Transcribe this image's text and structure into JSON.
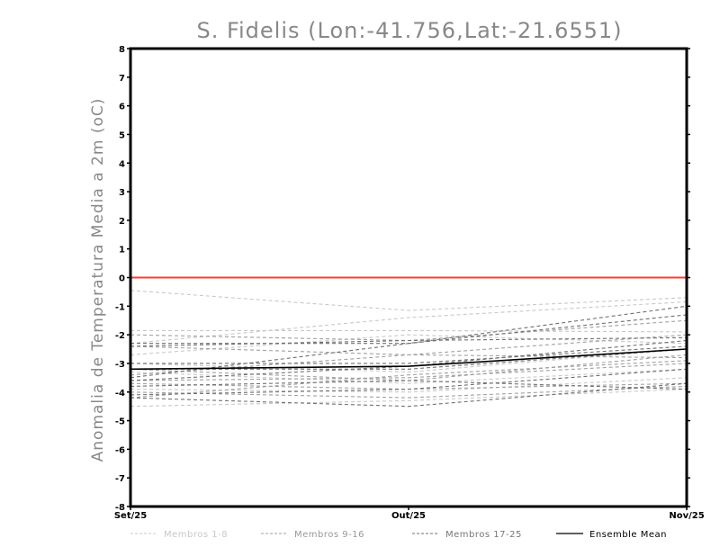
{
  "chart_data": {
    "type": "line",
    "title": "S. Fidelis (Lon:-41.756,Lat:-21.6551)",
    "ylabel": "Anomalia de Temperatura Media a 2m (oC)",
    "xlabel": "",
    "categories": [
      "Set/25",
      "Out/25",
      "Nov/25"
    ],
    "yticks": [
      "8",
      "7",
      "6",
      "5",
      "4",
      "3",
      "2",
      "1",
      "0",
      "-1",
      "-2",
      "-3",
      "-4",
      "-5",
      "-6",
      "-7",
      "-8"
    ],
    "ylim": [
      -8,
      8
    ],
    "grid": false,
    "zero_line": {
      "value": 0,
      "color": "#ff3b30"
    },
    "colors": {
      "members_1_8": "#c8c8c8",
      "members_9_16": "#a0a0a0",
      "members_17_25": "#707070",
      "ensemble_mean": "#000000"
    },
    "legend": [
      {
        "label": "Membros 1-8",
        "style": "members_1_8",
        "dashed": true
      },
      {
        "label": "Membros 9-16",
        "style": "members_9_16",
        "dashed": true
      },
      {
        "label": "Membros 17-25",
        "style": "members_17_25",
        "dashed": true
      },
      {
        "label": "Ensemble Mean",
        "style": "ensemble_mean",
        "dashed": false
      }
    ],
    "series": [
      {
        "group": "members_1_8",
        "values": [
          -0.45,
          -1.15,
          -0.7
        ]
      },
      {
        "group": "members_1_8",
        "values": [
          -1.85,
          -1.85,
          -1.9
        ]
      },
      {
        "group": "members_1_8",
        "values": [
          -2.3,
          -1.4,
          -0.85
        ]
      },
      {
        "group": "members_1_8",
        "values": [
          -2.7,
          -2.0,
          -2.3
        ]
      },
      {
        "group": "members_1_8",
        "values": [
          -3.0,
          -3.3,
          -2.5
        ]
      },
      {
        "group": "members_1_8",
        "values": [
          -3.3,
          -3.7,
          -3.2
        ]
      },
      {
        "group": "members_1_8",
        "values": [
          -3.9,
          -4.0,
          -3.5
        ]
      },
      {
        "group": "members_1_8",
        "values": [
          -4.5,
          -4.3,
          -3.9
        ]
      },
      {
        "group": "members_9_16",
        "values": [
          -2.0,
          -2.2,
          -1.5
        ]
      },
      {
        "group": "members_9_16",
        "values": [
          -2.4,
          -2.7,
          -2.8
        ]
      },
      {
        "group": "members_9_16",
        "values": [
          -3.4,
          -2.7,
          -2.0
        ]
      },
      {
        "group": "members_9_16",
        "values": [
          -3.6,
          -3.5,
          -3.0
        ]
      },
      {
        "group": "members_9_16",
        "values": [
          -3.7,
          -3.9,
          -3.7
        ]
      },
      {
        "group": "members_9_16",
        "values": [
          -4.0,
          -4.2,
          -3.8
        ]
      },
      {
        "group": "members_9_16",
        "values": [
          -4.2,
          -3.4,
          -2.9
        ]
      },
      {
        "group": "members_9_16",
        "values": [
          -3.2,
          -3.6,
          -2.7
        ]
      },
      {
        "group": "members_17_25",
        "values": [
          -2.3,
          -2.3,
          -1.3
        ]
      },
      {
        "group": "members_17_25",
        "values": [
          -3.5,
          -2.3,
          -1.0
        ]
      },
      {
        "group": "members_17_25",
        "values": [
          -2.4,
          -2.2,
          -2.1
        ]
      },
      {
        "group": "members_17_25",
        "values": [
          -3.2,
          -3.2,
          -2.5
        ]
      },
      {
        "group": "members_17_25",
        "values": [
          -3.6,
          -3.1,
          -2.2
        ]
      },
      {
        "group": "members_17_25",
        "values": [
          -4.1,
          -3.9,
          -3.2
        ]
      },
      {
        "group": "members_17_25",
        "values": [
          -4.2,
          -4.5,
          -3.7
        ]
      },
      {
        "group": "members_17_25",
        "values": [
          -3.8,
          -3.6,
          -3.9
        ]
      },
      {
        "group": "members_17_25",
        "values": [
          -3.0,
          -3.0,
          -2.4
        ]
      },
      {
        "group": "ensemble_mean",
        "values": [
          -3.2,
          -3.1,
          -2.5
        ]
      }
    ]
  }
}
